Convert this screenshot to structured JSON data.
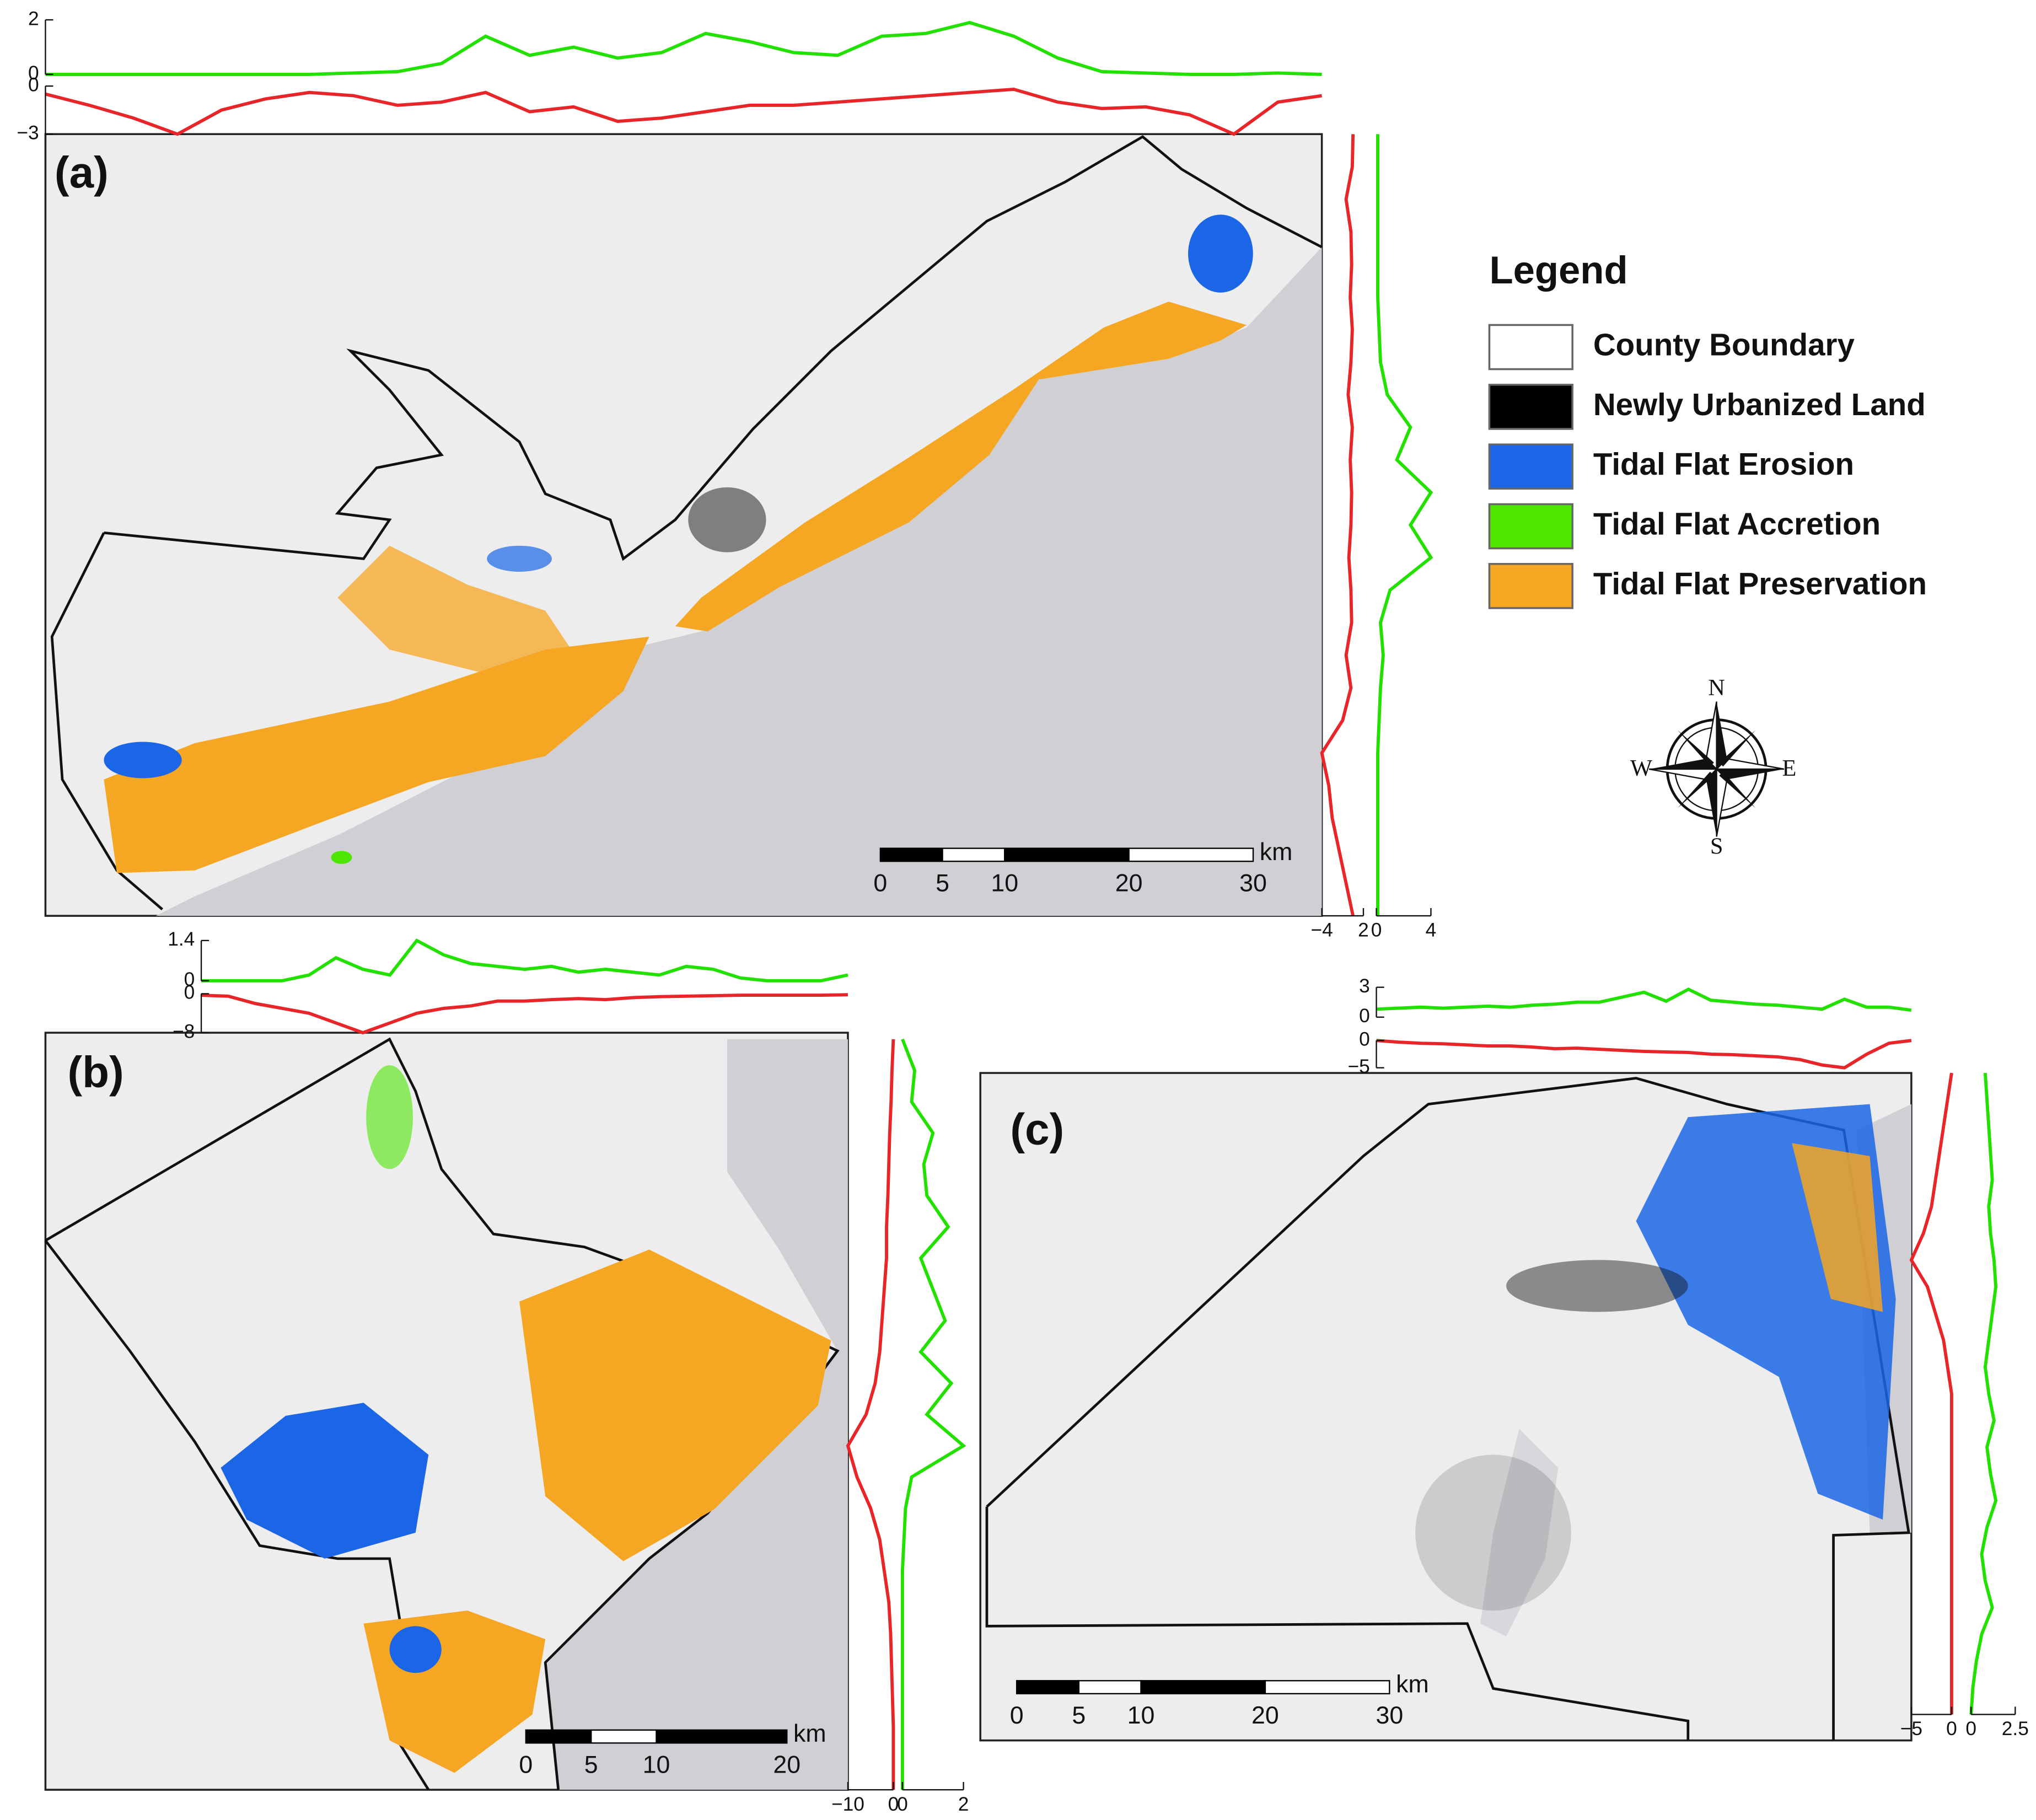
{
  "legend": {
    "title": "Legend",
    "items": [
      {
        "label": "County Boundary",
        "color": "#ffffff"
      },
      {
        "label": "Newly Urbanized Land",
        "color": "#000000"
      },
      {
        "label": "Tidal Flat Erosion",
        "color": "#1a66e6"
      },
      {
        "label": "Tidal Flat Accretion",
        "color": "#4ce600"
      },
      {
        "label": "Tidal Flat Preservation",
        "color": "#f5a623"
      }
    ]
  },
  "compass": {
    "n": "N",
    "s": "S",
    "e": "E",
    "w": "W"
  },
  "panels": [
    {
      "label": "(a)",
      "scale_bar": {
        "ticks": [
          0,
          5,
          10,
          20,
          30
        ],
        "unit": "km"
      },
      "top": {
        "accretion": {
          "color": "#22e000",
          "ylim": [
            0,
            2
          ],
          "yticks": [
            0,
            2
          ],
          "values": [
            0,
            0,
            0,
            0,
            0,
            0,
            0,
            0.05,
            0.1,
            0.4,
            1.4,
            0.7,
            1.0,
            0.6,
            0.8,
            1.5,
            1.2,
            0.8,
            0.7,
            1.4,
            1.5,
            1.9,
            1.4,
            0.6,
            0.1,
            0.05,
            0,
            0,
            0.05,
            0
          ]
        },
        "erosion": {
          "color": "#e8262a",
          "ylim": [
            -3,
            0
          ],
          "yticks": [
            {
              "value": -3,
              "label": "−3"
            },
            0
          ],
          "values": [
            -0.5,
            -1.2,
            -2.0,
            -3.0,
            -1.5,
            -0.8,
            -0.4,
            -0.6,
            -1.2,
            -1.0,
            -0.4,
            -1.6,
            -1.3,
            -2.2,
            -2.0,
            -1.6,
            -1.2,
            -1.2,
            -1.0,
            -0.8,
            -0.6,
            -0.4,
            -0.2,
            -1.0,
            -1.4,
            -1.3,
            -1.8,
            -3.0,
            -1.0,
            -0.6
          ]
        }
      },
      "right": {
        "erosion": {
          "color": "#e8262a",
          "xlim": [
            -4,
            2
          ],
          "xticks": [
            {
              "value": -4,
              "label": "−4"
            },
            2
          ],
          "values": [
            0.5,
            0.4,
            -0.5,
            0.2,
            0.3,
            0.1,
            0.4,
            0.2,
            -0.2,
            0.4,
            0.1,
            0.3,
            0.2,
            -0.1,
            0.2,
            0.3,
            -0.5,
            0.2,
            -1.0,
            -4.0,
            -3.0,
            -2.5,
            -1.5,
            -0.5,
            0.5
          ]
        },
        "accretion": {
          "color": "#22e000",
          "xlim": [
            0,
            4
          ],
          "xticks": [
            0,
            4
          ],
          "values": [
            0.1,
            0.1,
            0.1,
            0.1,
            0.1,
            0.1,
            0.2,
            0.3,
            0.8,
            2.5,
            1.5,
            4.0,
            2.5,
            4.0,
            1.0,
            0.3,
            0.5,
            0.3,
            0.2,
            0.1,
            0.1,
            0.1,
            0.1,
            0.1,
            0.1
          ]
        }
      }
    },
    {
      "label": "(b)",
      "scale_bar": {
        "ticks": [
          0,
          5,
          10,
          20
        ],
        "unit": "km"
      },
      "top": {
        "accretion": {
          "color": "#22e000",
          "ylim": [
            0,
            1.4
          ],
          "yticks": [
            0,
            1.4
          ],
          "values": [
            0,
            0,
            0,
            0,
            0.2,
            0.8,
            0.4,
            0.2,
            1.4,
            0.9,
            0.6,
            0.5,
            0.4,
            0.5,
            0.3,
            0.4,
            0.3,
            0.2,
            0.5,
            0.4,
            0.1,
            0,
            0,
            0,
            0.2
          ]
        },
        "erosion": {
          "color": "#e8262a",
          "ylim": [
            -8,
            0
          ],
          "yticks": [
            {
              "value": -8,
              "label": "−8"
            },
            0
          ],
          "values": [
            -0.3,
            -0.5,
            -2,
            -3,
            -4,
            -6,
            -8,
            -6,
            -4,
            -3,
            -2.5,
            -1.5,
            -1.5,
            -1.2,
            -1,
            -1.2,
            -0.8,
            -0.6,
            -0.5,
            -0.4,
            -0.3,
            -0.3,
            -0.3,
            -0.3,
            -0.2
          ]
        }
      },
      "right": {
        "erosion": {
          "color": "#e8262a",
          "xlim": [
            -10,
            0
          ],
          "xticks": [
            {
              "value": -10,
              "label": "−10"
            },
            0
          ],
          "values": [
            0,
            -0.3,
            -0.5,
            -0.8,
            -1,
            -1.2,
            -1.5,
            -1.5,
            -2,
            -2.5,
            -3,
            -4,
            -6,
            -10,
            -8,
            -5,
            -3,
            -2,
            -1,
            -0.6,
            -0.4,
            -0.2,
            0,
            0,
            0
          ]
        },
        "accretion": {
          "color": "#22e000",
          "xlim": [
            0,
            2
          ],
          "xticks": [
            0,
            2
          ],
          "values": [
            0,
            0.4,
            0.3,
            1.0,
            0.7,
            0.8,
            1.5,
            0.6,
            1.0,
            1.4,
            0.6,
            1.6,
            0.8,
            2.0,
            0.3,
            0.1,
            0.05,
            0,
            0,
            0,
            0,
            0,
            0,
            0,
            0
          ]
        }
      }
    },
    {
      "label": "(c)",
      "scale_bar": {
        "ticks": [
          0,
          5,
          10,
          20,
          30
        ],
        "unit": "km"
      },
      "top": {
        "accretion": {
          "color": "#22e000",
          "ylim": [
            0,
            3
          ],
          "yticks": [
            0,
            3
          ],
          "values": [
            0.8,
            0.9,
            1.0,
            0.9,
            1.0,
            1.1,
            1.0,
            1.2,
            1.3,
            1.5,
            1.5,
            2.0,
            2.5,
            1.6,
            2.8,
            1.7,
            1.5,
            1.3,
            1.2,
            1.0,
            0.8,
            1.8,
            1.0,
            1.0,
            0.7
          ]
        },
        "erosion": {
          "color": "#e8262a",
          "ylim": [
            -5,
            0
          ],
          "yticks": [
            {
              "value": -5,
              "label": "−5"
            },
            0
          ],
          "values": [
            0,
            -0.3,
            -0.5,
            -0.6,
            -0.8,
            -1,
            -1,
            -1.2,
            -1.5,
            -1.4,
            -1.6,
            -1.8,
            -2,
            -2.1,
            -2.2,
            -2.5,
            -2.6,
            -2.8,
            -3,
            -3.5,
            -4.5,
            -5,
            -2.5,
            -0.5,
            0
          ]
        }
      },
      "right": {
        "erosion": {
          "color": "#e8262a",
          "xlim": [
            -5,
            0
          ],
          "xticks": [
            {
              "value": -5,
              "label": "−5"
            },
            0
          ],
          "values": [
            0,
            -0.5,
            -1,
            -1.5,
            -2,
            -2.5,
            -3.5,
            -5,
            -3,
            -2,
            -1,
            -0.5,
            0,
            0,
            0,
            0,
            0,
            0,
            0,
            0,
            0,
            0,
            0,
            0,
            0
          ]
        },
        "accretion": {
          "color": "#22e000",
          "xlim": [
            0,
            2.5
          ],
          "xticks": [
            0,
            2.5
          ],
          "values": [
            0.8,
            0.9,
            1.0,
            1.1,
            1.2,
            1.0,
            1.1,
            1.3,
            1.4,
            1.2,
            1.0,
            0.8,
            1.0,
            1.3,
            0.9,
            1.1,
            1.4,
            0.9,
            0.6,
            0.8,
            1.2,
            0.6,
            0.3,
            0.1,
            0
          ]
        }
      }
    }
  ]
}
